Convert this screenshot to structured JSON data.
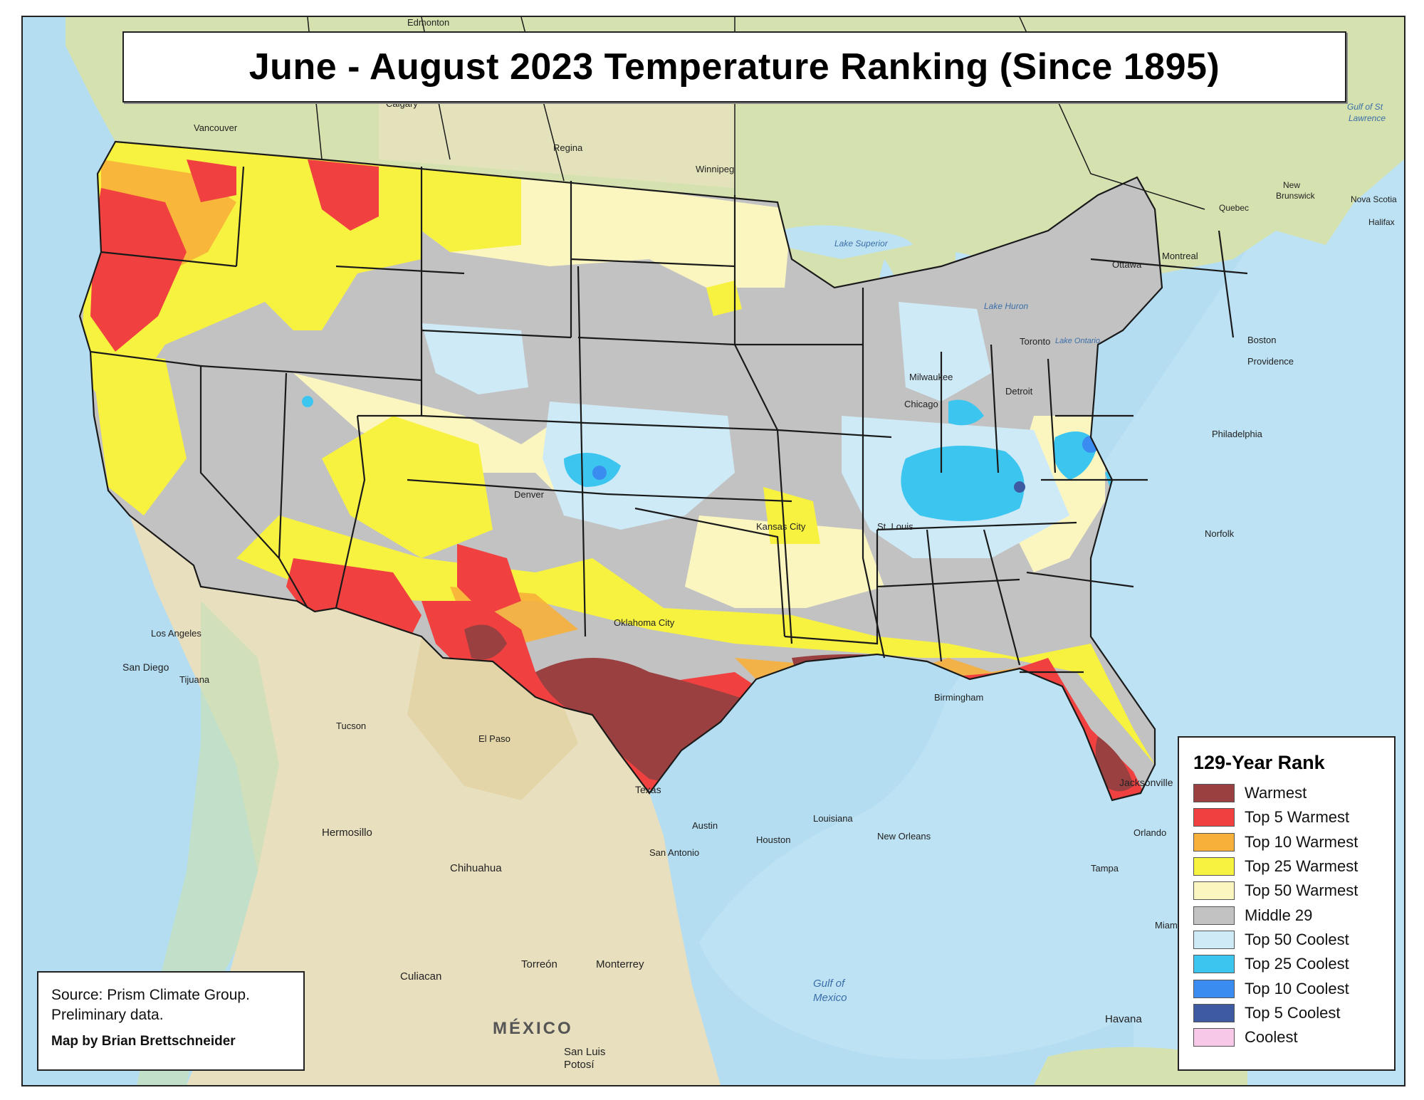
{
  "title": "June - August 2023 Temperature Ranking (Since 1895)",
  "legend": {
    "title": "129-Year Rank",
    "items": [
      {
        "label": "Warmest",
        "color": "#9b4040"
      },
      {
        "label": "Top 5 Warmest",
        "color": "#f04040"
      },
      {
        "label": "Top 10 Warmest",
        "color": "#f7b03a"
      },
      {
        "label": "Top 25 Warmest",
        "color": "#f7f240"
      },
      {
        "label": "Top 50 Warmest",
        "color": "#fbf6c0"
      },
      {
        "label": "Middle 29",
        "color": "#c2c2c2"
      },
      {
        "label": "Top 50 Coolest",
        "color": "#cfeaf7"
      },
      {
        "label": "Top 25 Coolest",
        "color": "#3cc6ef"
      },
      {
        "label": "Top 10 Coolest",
        "color": "#3a8cf0"
      },
      {
        "label": "Top 5 Coolest",
        "color": "#3e5aa0"
      },
      {
        "label": "Coolest",
        "color": "#f8c8e8"
      }
    ]
  },
  "source": {
    "line1": "Source: Prism Climate Group.",
    "line2": "Preliminary data.",
    "credit": "Map by Brian Brettschneider"
  },
  "places": {
    "edmonton": "Edmonton",
    "calgary": "Calgary",
    "vancouver": "Vancouver",
    "regina": "Regina",
    "winnipeg": "Winnipeg",
    "lake_superior": "Lake Superior",
    "lake_huron": "Lake Huron",
    "lake_ontario": "Lake Ontario",
    "ottawa": "Ottawa",
    "montreal": "Montreal",
    "toronto": "Toronto",
    "boston": "Boston",
    "providence": "Providence",
    "gulf_st_lawrence_1": "Gulf of St",
    "gulf_st_lawrence_2": "Lawrence",
    "new_brunswick_1": "New",
    "new_brunswick_2": "Brunswick",
    "nova_scotia": "Nova Scotia",
    "halifax": "Halifax",
    "quebec": "Quebec",
    "milwaukee": "Milwaukee",
    "chicago": "Chicago",
    "detroit": "Detroit",
    "philadelphia": "Philadelphia",
    "norfolk": "Norfolk",
    "kansas_city": "Kansas City",
    "st_louis": "St. Louis",
    "denver": "Denver",
    "oklahoma_city": "Oklahoma City",
    "el_paso": "El Paso",
    "texas": "Texas",
    "austin": "Austin",
    "san_antonio": "San Antonio",
    "houston": "Houston",
    "louisiana": "Louisiana",
    "new_orleans": "New Orleans",
    "jacksonville": "Jacksonville",
    "orlando": "Orlando",
    "tampa": "Tampa",
    "miami": "Miami",
    "los_angeles": "Los Angeles",
    "san_diego": "San Diego",
    "tijuana": "Tijuana",
    "tucson": "Tucson",
    "hermosillo": "Hermosillo",
    "chihuahua": "Chihuahua",
    "culiacan": "Culiacan",
    "torreon": "Torreón",
    "monterrey": "Monterrey",
    "mexico": "MÉXICO",
    "san_luis_1": "San Luis",
    "san_luis_2": "Potosí",
    "gulf_of_mexico_1": "Gulf of",
    "gulf_of_mexico_2": "Mexico",
    "havana": "Havana",
    "birmingham": "Birmingham"
  }
}
